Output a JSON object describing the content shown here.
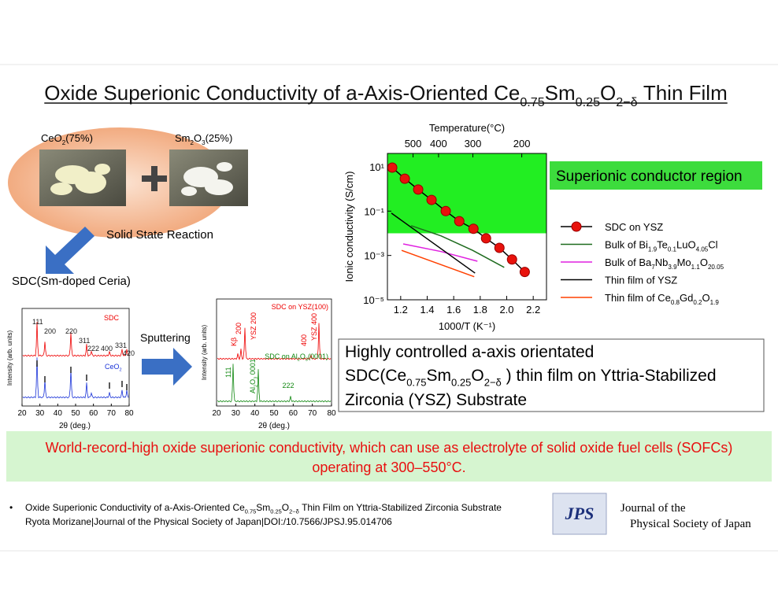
{
  "title": [
    "Oxide Superionic Conductivity of a-Axis-Oriented Ce",
    "0.75",
    "Sm",
    "0.25",
    "O",
    "2−δ",
    " Thin Film"
  ],
  "synthesis": {
    "ceo2": [
      "CeO",
      "2",
      "(75%)"
    ],
    "sm2o3": [
      "Sm",
      "2",
      "O",
      "3",
      "(25%)"
    ],
    "reaction": "Solid State Reaction",
    "product": "SDC(Sm-doped Ceria)",
    "sputtering": "Sputtering"
  },
  "xrd_powder": {
    "y_label": "Intensity (arb. units)",
    "x_label": "2θ (deg.)",
    "x_ticks": [
      20,
      30,
      40,
      50,
      60,
      70,
      80
    ],
    "sdc": "SDC",
    "ceo2": [
      "CeO",
      "2"
    ],
    "peaks": [
      "111",
      "200",
      "220",
      "311",
      "222",
      "400",
      "331",
      "420"
    ]
  },
  "xrd_film": {
    "y_label": "Intensity (arb. units)",
    "x_label": "2θ (deg.)",
    "x_ticks": [
      20,
      30,
      40,
      50,
      60,
      70,
      80
    ],
    "sdc_ysz": "SDC on YSZ(100)",
    "sdc_al2o3": [
      "SDC on Al",
      "2",
      "O",
      "3",
      "(0001)"
    ],
    "peaks_ysz": [
      "Kβ",
      "200",
      "YSZ 200",
      "400",
      "YSZ 400"
    ],
    "peaks_al2o3": [
      "111",
      "222"
    ],
    "al2o3_peak": [
      "Al",
      "2",
      "O",
      "3",
      " 0001"
    ]
  },
  "chart_data": {
    "type": "line",
    "xlabel": "1000/T (K⁻¹)",
    "ylabel": "Ionic conductivity (S/cm)",
    "x2label": "Temperature(°C)",
    "xlim": [
      1.1,
      2.3
    ],
    "xticks": [
      1.2,
      1.4,
      1.6,
      1.8,
      {
        "value": 2,
        "label": "2.0"
      },
      2.2
    ],
    "x2ticks": [
      500,
      400,
      300,
      200
    ],
    "ylim": [
      1e-05,
      40
    ],
    "log_y": true,
    "yticks": [
      {
        "value": 10,
        "label": "10¹"
      },
      {
        "value": 0.1,
        "label": "10⁻¹"
      },
      {
        "value": 0.001,
        "label": "10⁻³"
      },
      {
        "value": 1e-05,
        "label": "10⁻⁵"
      }
    ],
    "region": {
      "label": "Superionic conductor region",
      "from": 0.01,
      "color": "#22ee22"
    },
    "series": [
      {
        "name": [
          "SDC on YSZ"
        ],
        "color": "#e8120c",
        "line_color": "#000000",
        "marker": "circle",
        "x": [
          1.136,
          1.231,
          1.332,
          1.433,
          1.54,
          1.642,
          1.749,
          1.844,
          1.945,
          2.04,
          2.136
        ],
        "values": [
          9.2,
          2.9,
          0.94,
          0.32,
          0.1,
          0.035,
          0.016,
          0.0059,
          0.0022,
          0.00066,
          0.00018
        ]
      },
      {
        "name": [
          "Bulk of Bi",
          "1.9",
          "Te",
          "0.1",
          "LuO",
          "4.05",
          "Cl"
        ],
        "color": "#1e6b1e",
        "x": [
          1.279,
          1.505,
          1.743,
          1.981
        ],
        "values": [
          0.022,
          0.0076,
          0.0017,
          0.00029
        ]
      },
      {
        "name": [
          "Bulk of Ba",
          "7",
          "Nb",
          "3.9",
          "Mo",
          "1.1",
          "O",
          "20.05"
        ],
        "color": "#e020e0",
        "x": [
          1.219,
          1.505,
          1.779
        ],
        "values": [
          0.0033,
          0.0015,
          0.00055
        ]
      },
      {
        "name": [
          "Thin film of YSZ"
        ],
        "color": "#000000",
        "x": [
          1.13,
          1.761
        ],
        "values": [
          0.081,
          0.00016
        ]
      },
      {
        "name": [
          "Thin film of Ce",
          "0.8",
          "Gd",
          "0.2",
          "O",
          "1.9"
        ],
        "color": "#ff4000",
        "x": [
          1.207,
          1.755
        ],
        "values": [
          0.0017,
          0.00011
        ]
      }
    ]
  },
  "summary": [
    [
      "Highly controlled  a-axis orientated"
    ],
    [
      "SDC(Ce",
      "0.75",
      "Sm",
      "0.25",
      "O",
      "2−δ",
      " ) thin film  on Yttria-Stabilized"
    ],
    [
      "Zirconia (YSZ) Substrate"
    ]
  ],
  "banner": [
    "World-record-high oxide superionic conductivity, which can use as electrolyte of solid oxide fuel cells (SOFCs)",
    "operating at 300–550°C."
  ],
  "reference": {
    "bullet": "•",
    "line1": [
      "Oxide Superionic Conductivity of a-Axis-Oriented Ce",
      "0.75",
      "Sm",
      "0.25",
      "O",
      "2−δ",
      " Thin Film on Yttria-Stabilized Zirconia Substrate"
    ],
    "line2": "Ryota Morizane|Journal of the Physical Society of Japan|DOI:/10.7566/JPSJ.95.014706"
  },
  "publisher": {
    "logo": "JPS",
    "name": [
      "Journal of the",
      "Physical Society of Japan"
    ]
  }
}
